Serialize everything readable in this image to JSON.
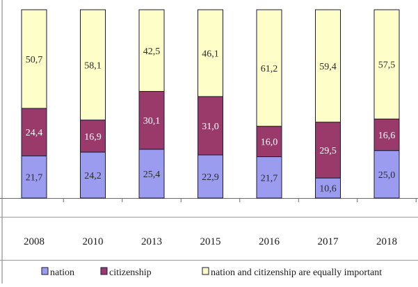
{
  "chart_data": {
    "type": "bar",
    "stacked": true,
    "percent_stacked": true,
    "categories": [
      "2008",
      "2010",
      "2013",
      "2015",
      "2016",
      "2017",
      "2018"
    ],
    "series": [
      {
        "name": "nation",
        "color": "#9b9cf0",
        "values": [
          21.7,
          24.2,
          25.4,
          22.9,
          21.7,
          10.6,
          25.0
        ],
        "labels": [
          "21,7",
          "24,2",
          "25,4",
          "22,9",
          "21,7",
          "10,6",
          "25,0"
        ]
      },
      {
        "name": "citizenship",
        "color": "#9a3a6a",
        "values": [
          24.4,
          16.9,
          30.1,
          31.0,
          16.0,
          29.5,
          16.6
        ],
        "labels": [
          "24,4",
          "16,9",
          "30,1",
          "31,0",
          "16,0",
          "29,5",
          "16,6"
        ]
      },
      {
        "name": "nation and citizenship are equally important",
        "color": "#fefec8",
        "values": [
          50.7,
          58.1,
          42.5,
          46.1,
          61.2,
          59.4,
          57.5
        ],
        "labels": [
          "50,7",
          "58,1",
          "42,5",
          "46,1",
          "61,2",
          "59,4",
          "57,5"
        ]
      }
    ],
    "legend_position": "bottom",
    "grid": false
  }
}
